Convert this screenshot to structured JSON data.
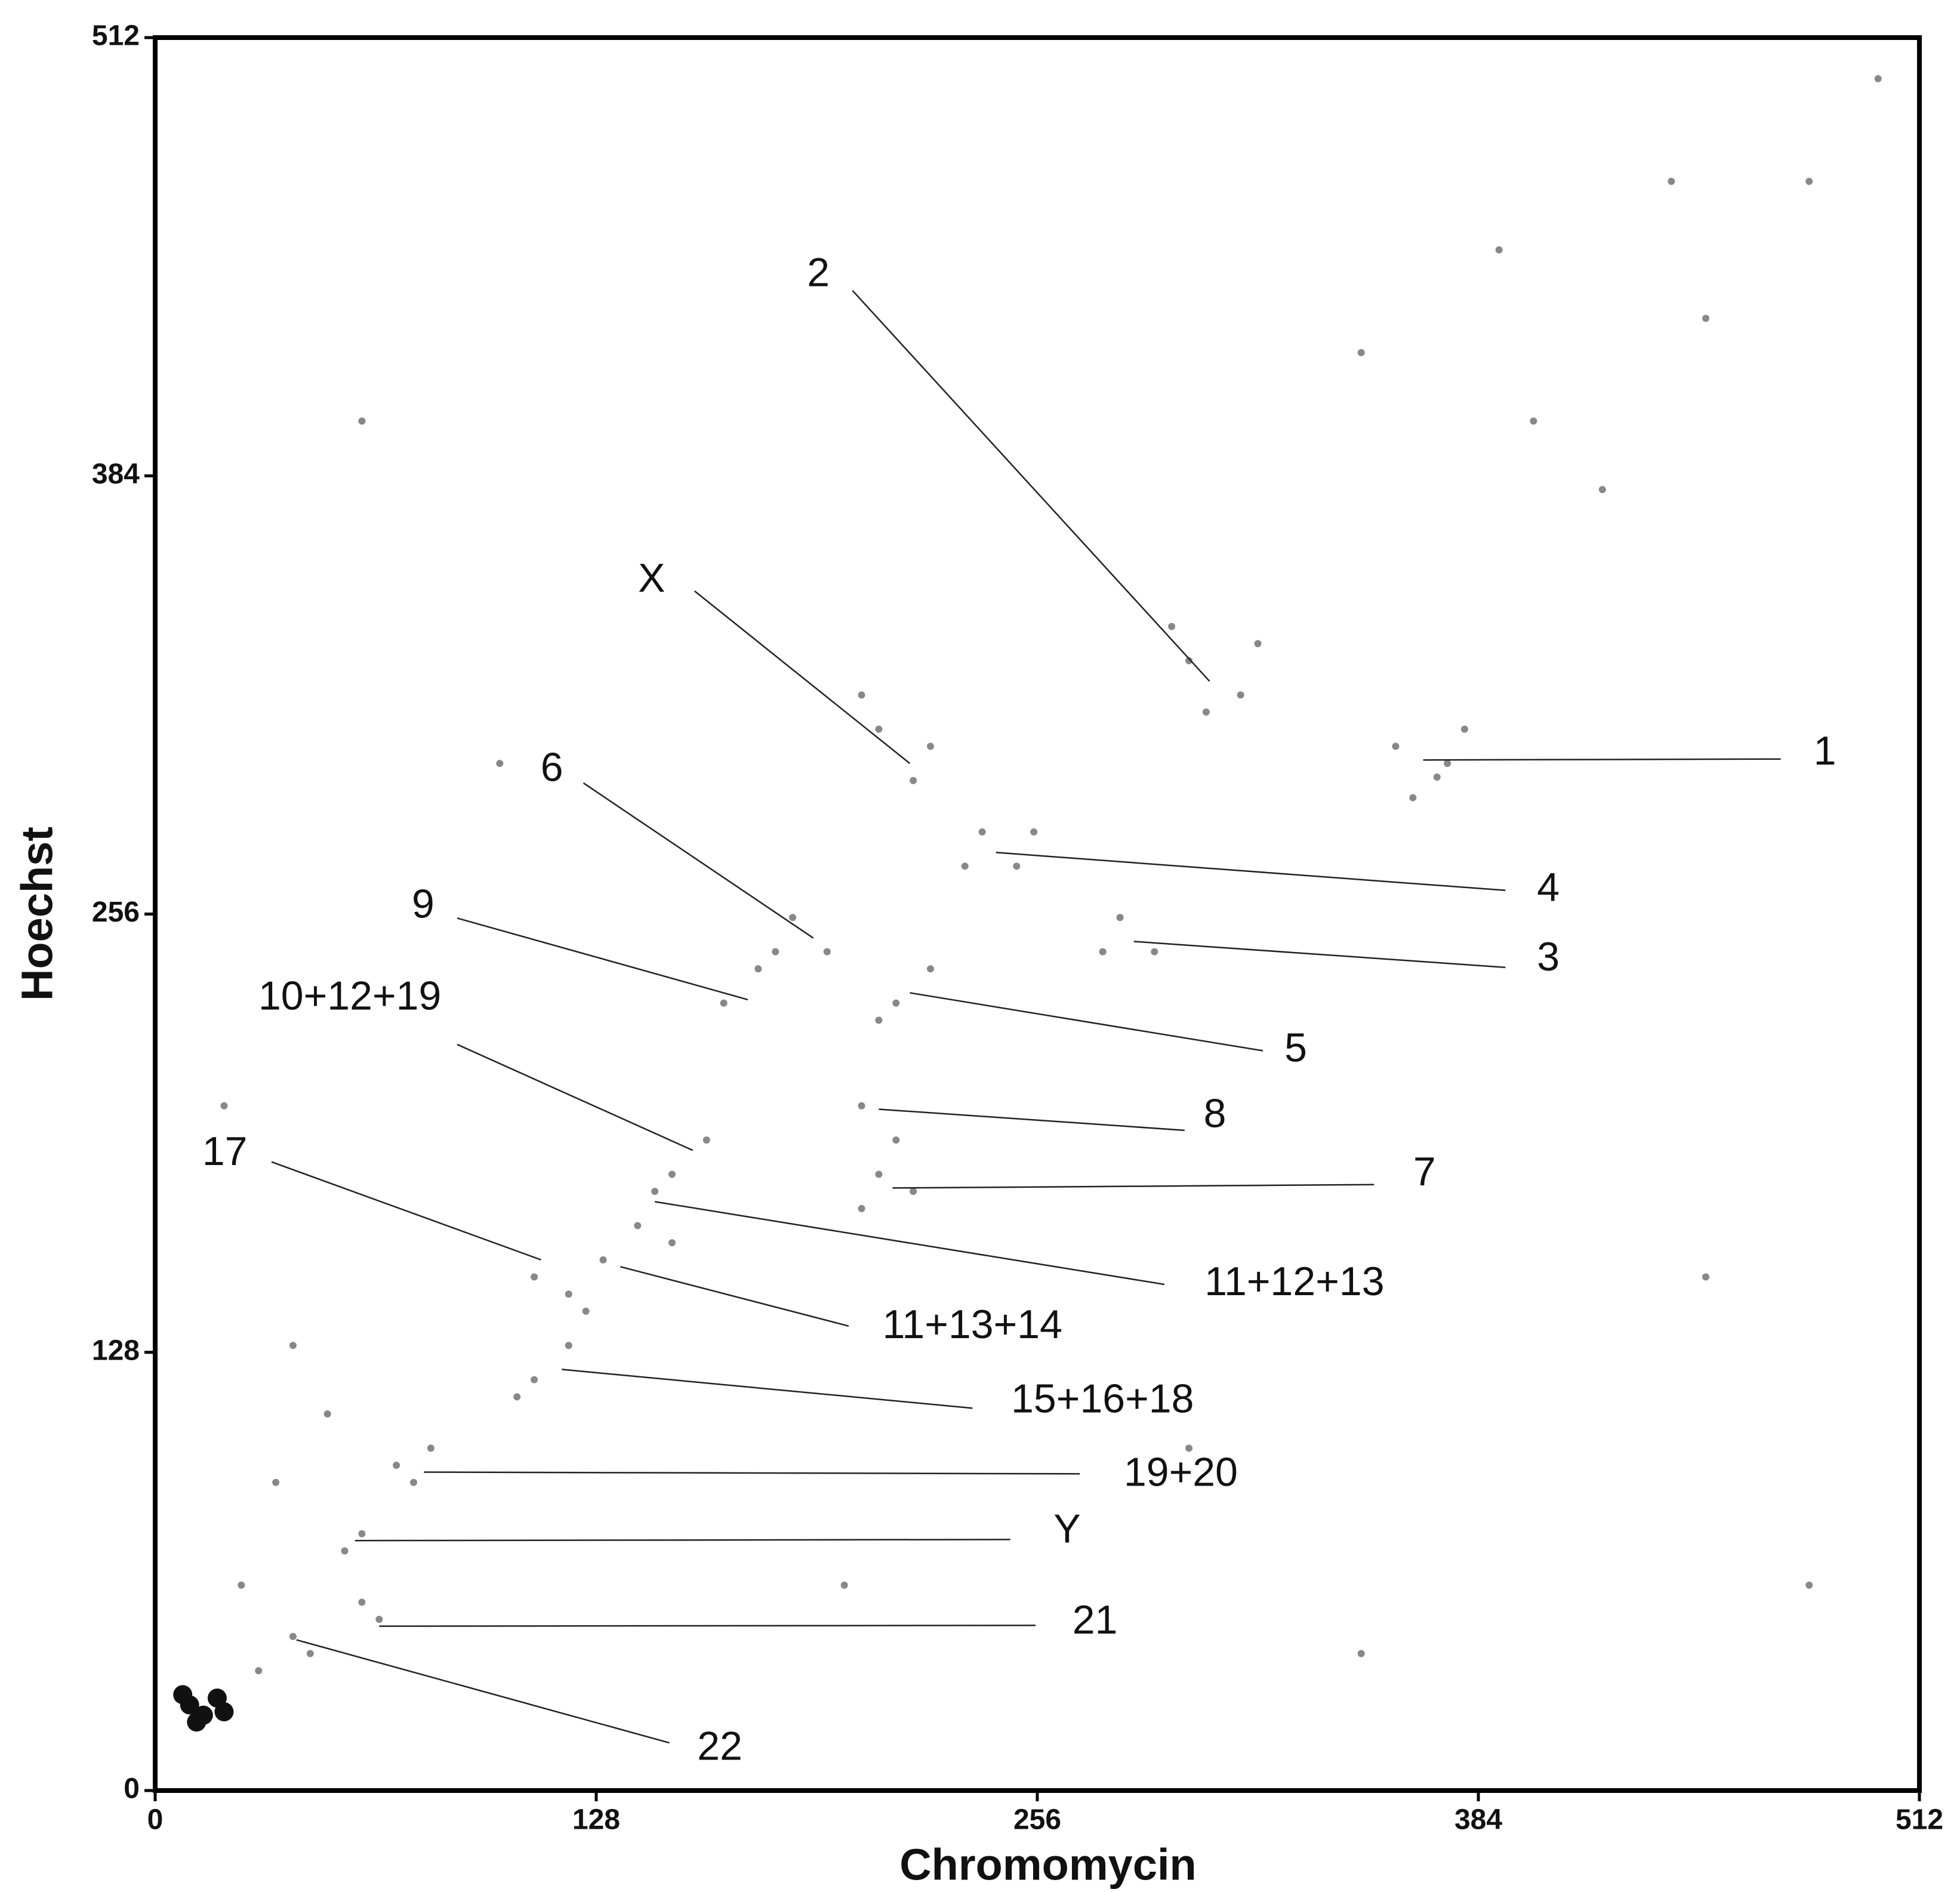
{
  "chart_data": {
    "type": "scatter",
    "x_label": "Chromomycin",
    "y_label": "Hoechst",
    "xlim": [
      0,
      512
    ],
    "ylim": [
      0,
      512
    ],
    "xticks": [
      0,
      128,
      256,
      384,
      512
    ],
    "yticks": [
      0,
      128,
      256,
      384,
      512
    ],
    "series": [
      {
        "color": "#888888",
        "x": [
          360,
          372,
          380,
          365,
          375,
          300,
          315,
          305,
          320,
          295,
          210,
          220,
          205,
          225,
          240,
          250,
          235,
          255,
          280,
          290,
          275,
          185,
          195,
          180,
          165,
          175,
          215,
          225,
          210,
          205,
          215,
          210,
          205,
          220,
          150,
          160,
          145,
          140,
          150,
          110,
          120,
          130,
          125,
          110,
          120,
          105,
          70,
          80,
          75,
          60,
          55,
          65,
          60,
          40,
          45,
          30,
          400,
          450,
          420,
          480,
          350,
          390,
          500,
          440,
          40,
          20,
          100,
          60,
          450,
          480,
          300,
          350,
          200,
          35,
          25,
          50
        ],
        "values": [
          305,
          296,
          310,
          290,
          300,
          330,
          320,
          315,
          335,
          340,
          310,
          295,
          320,
          305,
          280,
          270,
          270,
          280,
          255,
          245,
          245,
          255,
          245,
          245,
          230,
          240,
          230,
          240,
          225,
          200,
          190,
          180,
          170,
          175,
          180,
          190,
          175,
          165,
          160,
          150,
          145,
          155,
          140,
          120,
          130,
          115,
          95,
          100,
          90,
          75,
          70,
          50,
          55,
          45,
          40,
          35,
          400,
          430,
          380,
          470,
          420,
          450,
          500,
          470,
          130,
          200,
          300,
          400,
          150,
          60,
          100,
          40,
          60,
          90,
          60,
          110
        ]
      },
      {
        "color": "#111111",
        "x": [
          10,
          14,
          18,
          12,
          20,
          8
        ],
        "values": [
          25,
          22,
          27,
          20,
          23,
          28
        ]
      }
    ],
    "annotations": [
      {
        "text": "2",
        "x": 306,
        "y": 324
      },
      {
        "text": "X",
        "x": 219,
        "y": 300
      },
      {
        "text": "1",
        "x": 368,
        "y": 301
      },
      {
        "text": "6",
        "x": 191,
        "y": 249
      },
      {
        "text": "4",
        "x": 244,
        "y": 274
      },
      {
        "text": "3",
        "x": 284,
        "y": 248
      },
      {
        "text": "9",
        "x": 172,
        "y": 231
      },
      {
        "text": "5",
        "x": 219,
        "y": 233
      },
      {
        "text": "10+12+19",
        "x": 156,
        "y": 187
      },
      {
        "text": "8",
        "x": 210,
        "y": 199
      },
      {
        "text": "7",
        "x": 214,
        "y": 176
      },
      {
        "text": "17",
        "x": 112,
        "y": 155
      },
      {
        "text": "11+12+13",
        "x": 145,
        "y": 172
      },
      {
        "text": "11+13+14",
        "x": 135,
        "y": 153
      },
      {
        "text": "15+16+18",
        "x": 118,
        "y": 123
      },
      {
        "text": "19+20",
        "x": 78,
        "y": 93
      },
      {
        "text": "Y",
        "x": 58,
        "y": 73
      },
      {
        "text": "21",
        "x": 65,
        "y": 48
      },
      {
        "text": "22",
        "x": 41,
        "y": 44
      }
    ]
  }
}
